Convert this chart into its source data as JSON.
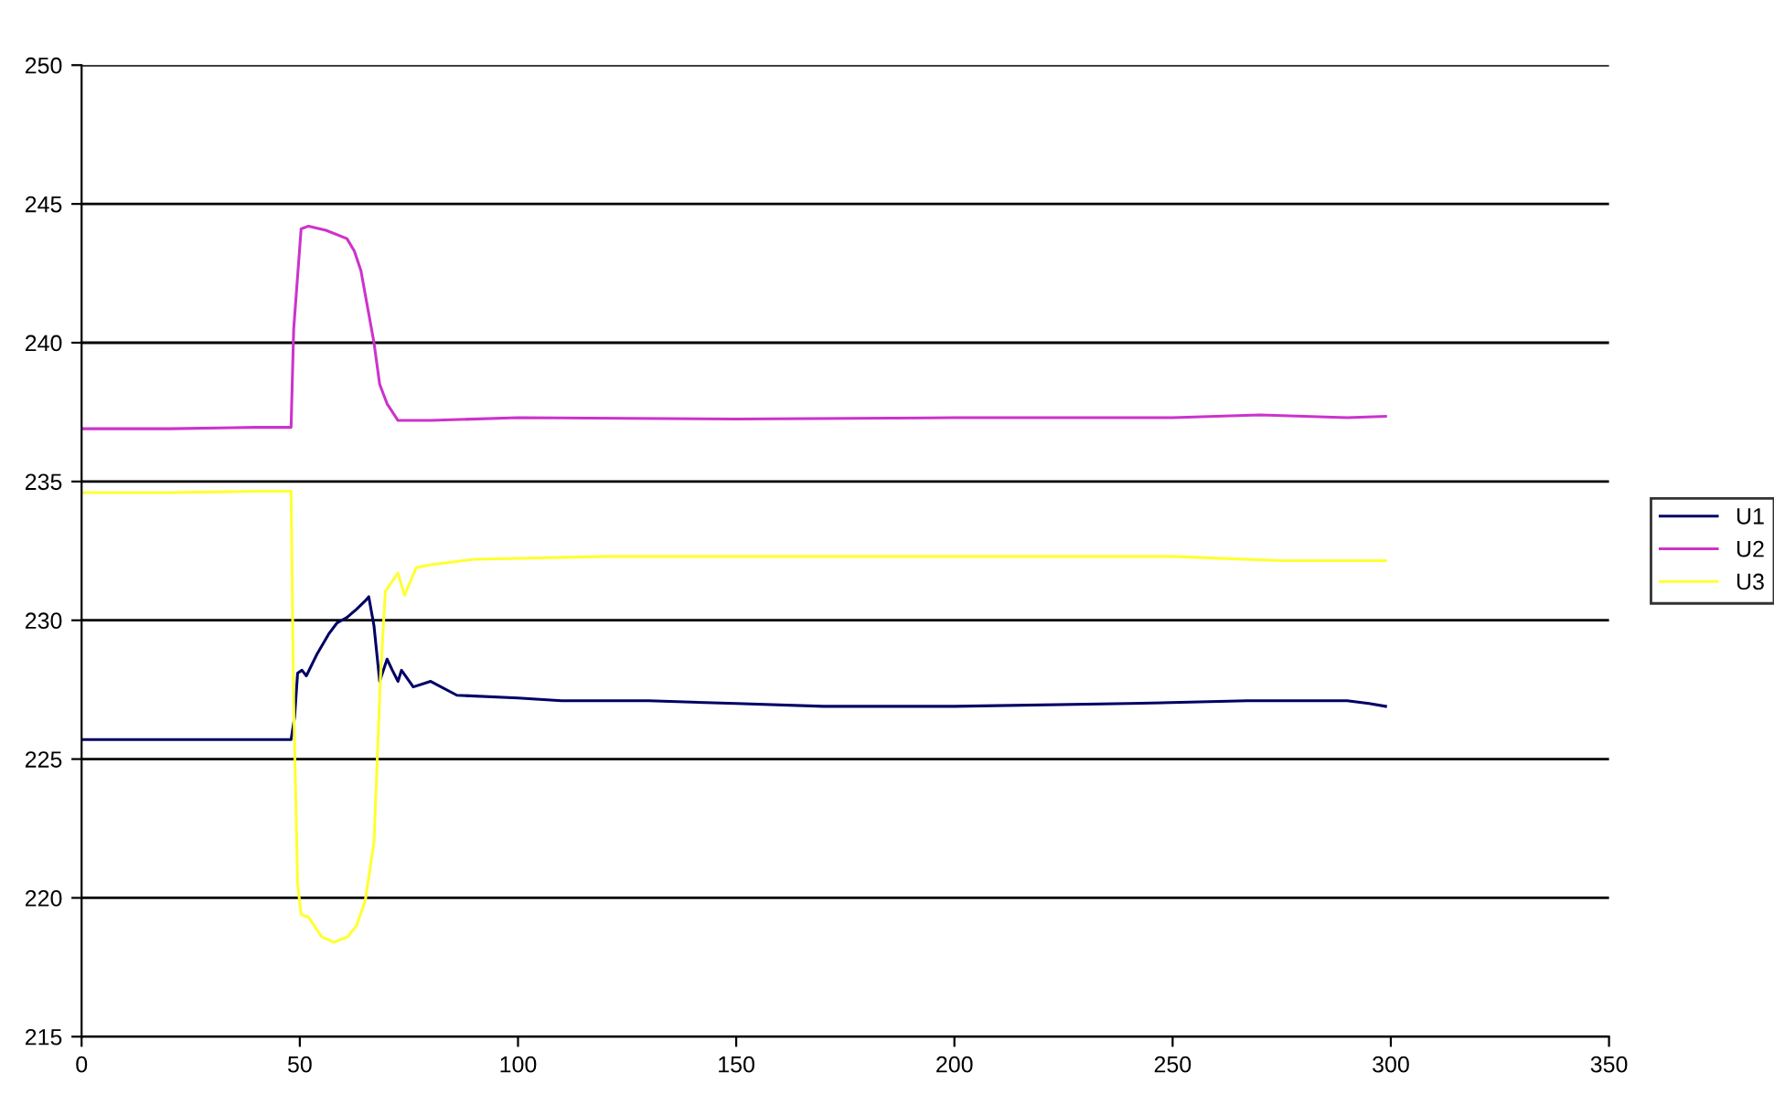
{
  "chart_data": {
    "type": "line",
    "xlim": [
      0,
      350
    ],
    "ylim": [
      215,
      250
    ],
    "xticks": [
      0,
      50,
      100,
      150,
      200,
      250,
      300,
      350
    ],
    "yticks": [
      215,
      220,
      225,
      230,
      235,
      240,
      245,
      250
    ],
    "grid": "y",
    "legend": "right",
    "marker": "none",
    "line_style": "solid",
    "series": [
      {
        "name": "U1",
        "color": "#000066",
        "x": [
          0,
          10,
          20,
          30,
          40,
          48,
          48.8,
          49.5,
          50.5,
          51.5,
          54,
          56.6,
          58.5,
          60.8,
          63,
          65,
          65.8,
          67,
          68.3,
          70,
          71.2,
          72.5,
          73.3,
          76,
          80,
          86,
          100,
          110,
          130,
          150,
          170,
          200,
          240,
          267,
          290,
          295,
          298.8
        ],
        "values": [
          225.7,
          225.7,
          225.7,
          225.7,
          225.7,
          225.7,
          226.5,
          228.1,
          228.2,
          228.0,
          228.8,
          229.5,
          229.9,
          230.1,
          230.4,
          230.7,
          230.85,
          229.8,
          227.8,
          228.6,
          228.2,
          227.8,
          228.2,
          227.6,
          227.8,
          227.3,
          227.2,
          227.1,
          227.1,
          227.0,
          226.9,
          226.9,
          227.0,
          227.1,
          227.1,
          227.0,
          226.9
        ]
      },
      {
        "name": "U2",
        "color": "#cc33cc",
        "x": [
          0,
          20,
          40,
          48,
          48.6,
          50.3,
          52,
          56,
          60.8,
          62.5,
          64,
          65.5,
          67,
          68.3,
          70,
          72.5,
          80,
          100,
          150,
          200,
          250,
          270,
          290,
          298.8
        ],
        "values": [
          236.9,
          236.9,
          236.95,
          236.95,
          240.5,
          244.1,
          244.2,
          244.05,
          243.75,
          243.3,
          242.6,
          241.3,
          240.0,
          238.5,
          237.8,
          237.2,
          237.2,
          237.3,
          237.25,
          237.3,
          237.3,
          237.4,
          237.3,
          237.35
        ]
      },
      {
        "name": "U3",
        "color": "#ffff33",
        "x": [
          0,
          20,
          40,
          48,
          48.6,
          49.5,
          50.3,
          52,
          55,
          57.8,
          61,
          63,
          65,
          67,
          68.5,
          69.6,
          72.5,
          74,
          76.7,
          80,
          90,
          120,
          150,
          200,
          250,
          275,
          298.8
        ],
        "values": [
          234.6,
          234.6,
          234.65,
          234.65,
          227.0,
          220.5,
          219.4,
          219.3,
          218.6,
          218.4,
          218.6,
          219.0,
          219.9,
          222.0,
          228.0,
          231.05,
          231.7,
          230.9,
          231.9,
          232.0,
          232.2,
          232.3,
          232.3,
          232.3,
          232.3,
          232.15,
          232.15
        ]
      }
    ]
  }
}
